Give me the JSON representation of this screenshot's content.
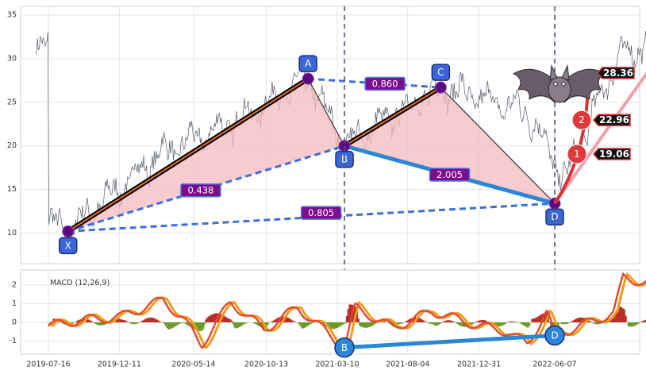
{
  "chart_data": {
    "type": "line",
    "panels": [
      "price",
      "macd"
    ],
    "x_ticks": [
      "2019-07-16",
      "2019-12-11",
      "2020-05-14",
      "2020-10-13",
      "2021-03-10",
      "2021-08-04",
      "2021-12-31",
      "2022-06-07"
    ],
    "price_axis": {
      "ylim": [
        6.5,
        36
      ],
      "ticks": [
        10,
        15,
        20,
        25,
        30,
        35
      ]
    },
    "macd_axis": {
      "ylim": [
        -1.7,
        2.8
      ],
      "ticks": [
        -1,
        0,
        1,
        2
      ]
    },
    "grid": true,
    "pattern_points": [
      {
        "label": "X",
        "date": "2019-08-26",
        "price": 10.2
      },
      {
        "label": "A",
        "date": "2021-01-08",
        "price": 27.7
      },
      {
        "label": "B",
        "date": "2021-03-25",
        "price": 20.0
      },
      {
        "label": "C",
        "date": "2021-10-12",
        "price": 26.7
      },
      {
        "label": "D",
        "date": "2022-06-07",
        "price": 13.4
      }
    ],
    "ratios": [
      {
        "label": "0.860",
        "from": "A",
        "to": "C",
        "via": "B"
      },
      {
        "label": "0.438",
        "from": "X",
        "to": "B"
      },
      {
        "label": "2.005",
        "from": "B",
        "to": "D"
      },
      {
        "label": "0.805",
        "from": "X",
        "to": "D"
      }
    ],
    "targets": [
      {
        "marker": "1",
        "value": "19.06"
      },
      {
        "marker": "2",
        "value": "22.96"
      },
      {
        "marker": "",
        "value": "28.36"
      }
    ],
    "latest_price": 32.7,
    "macd_label": "MACD (12,26,9)",
    "macd_divergence": [
      {
        "label": "B",
        "date": "2021-03-25",
        "value": -1.35
      },
      {
        "label": "D",
        "date": "2022-06-07",
        "value": -0.7
      }
    ],
    "colors": {
      "pattern_fill": "#f6b9bd",
      "point_marker": "#5b0a84",
      "label_box": "#3a66d6",
      "ratio_box": "#7b0d8c",
      "target_circle": "#e0393b",
      "macd_fast": "#e04a32",
      "macd_slow": "#f59a1b",
      "divergence_line": "#2a86d6"
    }
  }
}
